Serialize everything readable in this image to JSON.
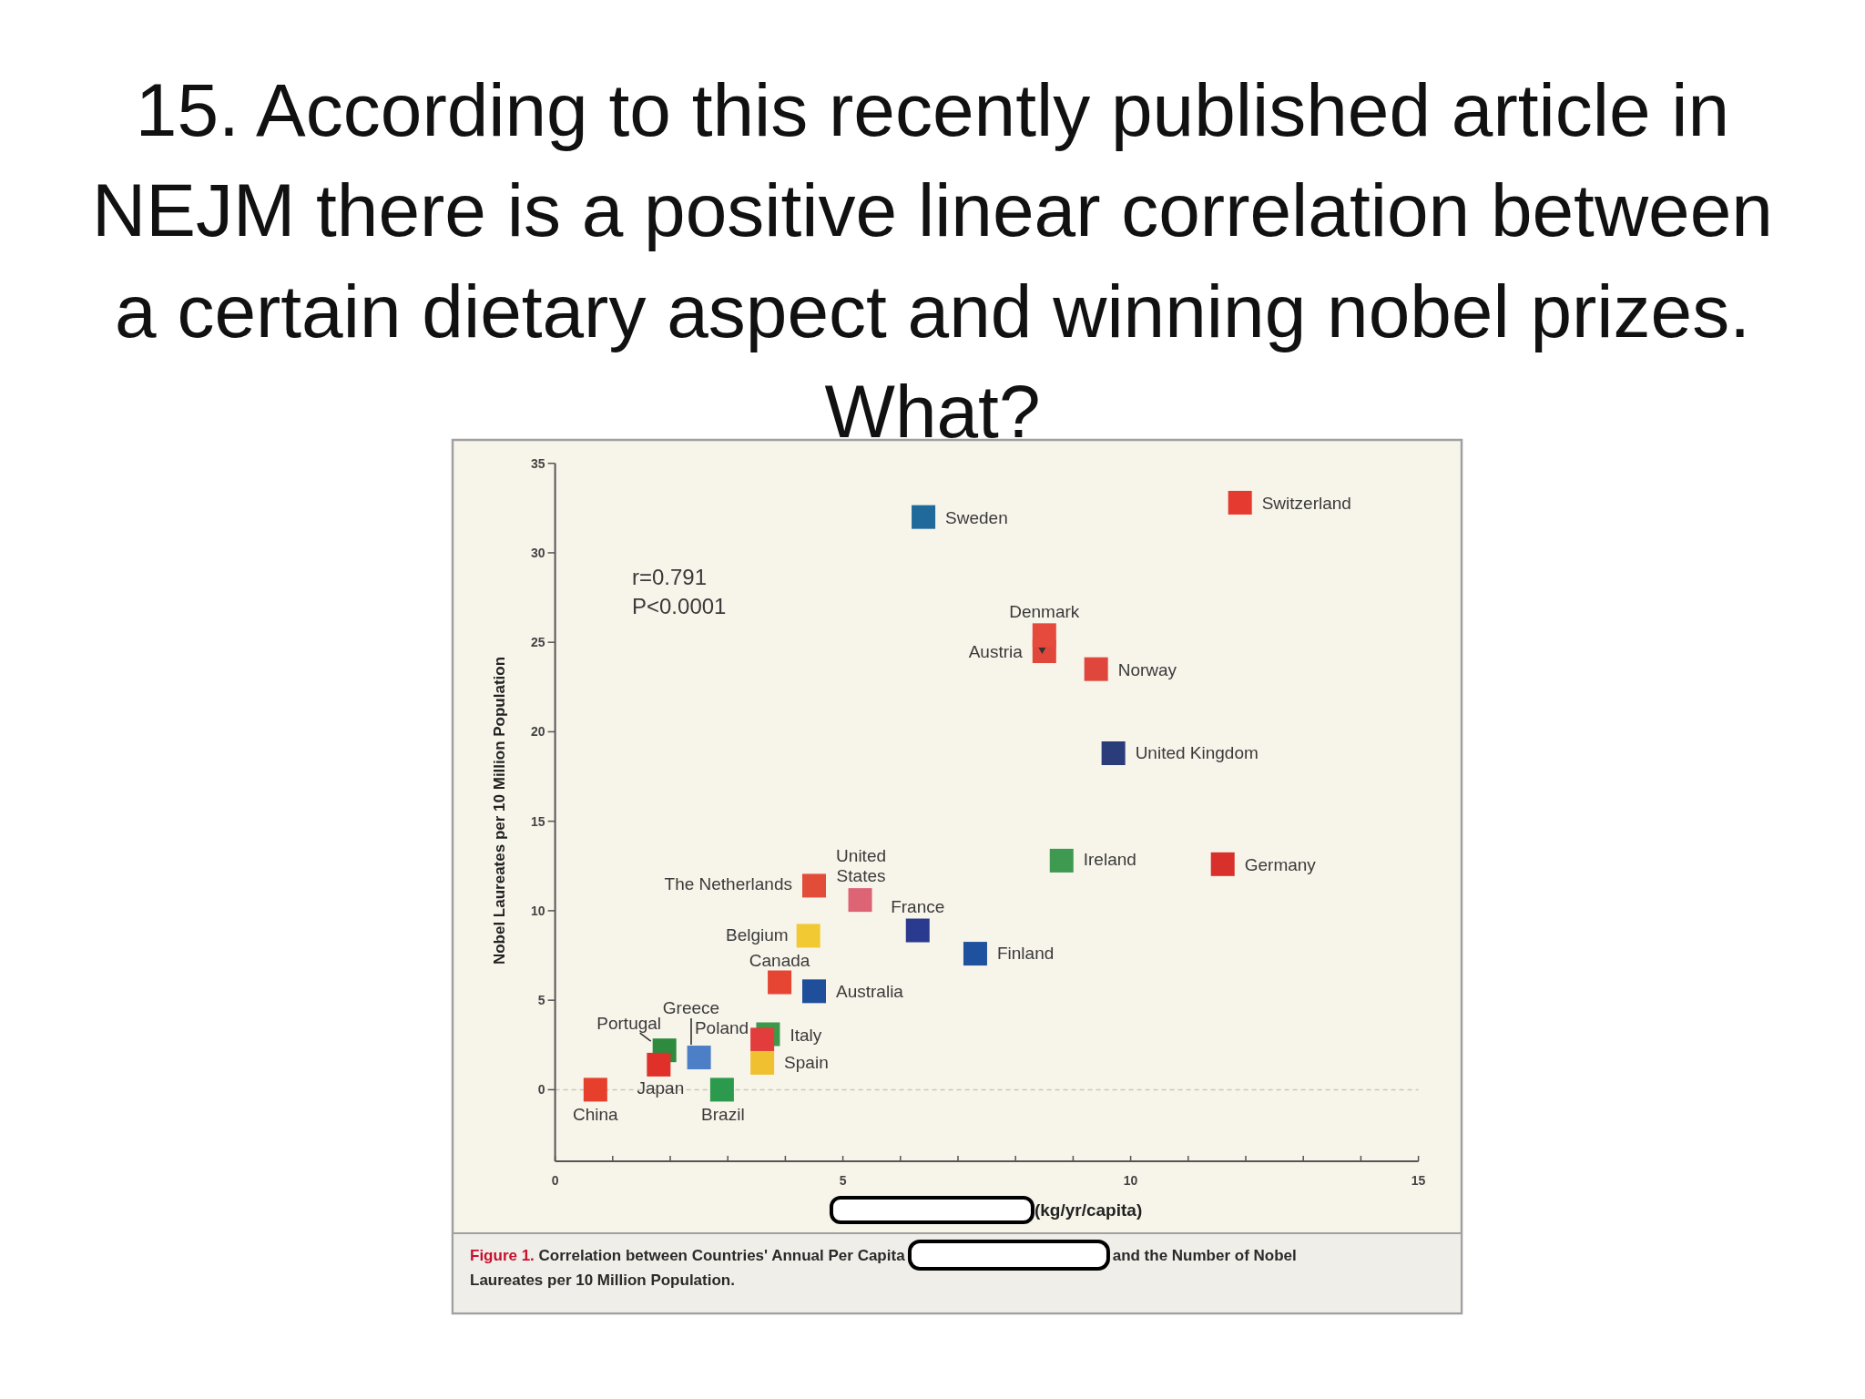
{
  "chart_data": {
    "type": "scatter",
    "title": "15. According to this recently published article in NEJM there is a positive linear correlation between a certain dietary aspect and winning nobel prizes. What?",
    "xlabel": "(kg/yr/capita)",
    "ylabel": "Nobel Laureates per 10 Million Population",
    "annotations": [
      "r=0.791",
      "P<0.0001",
      "Figure 1.",
      "Correlation between Countries' Annual Per Capita",
      "and the Number of Nobel",
      "Laureates per 10 Million Population."
    ],
    "marker": "square",
    "series": [
      {
        "name": "Switzerland",
        "color": "#e53a2f",
        "x": [
          11.9
        ],
        "values": [
          32.8
        ]
      },
      {
        "name": "Sweden",
        "color": "#1f6a9a",
        "x": [
          6.4
        ],
        "values": [
          32.0
        ]
      },
      {
        "name": "Austria",
        "color": "#e0473a",
        "x": [
          8.5
        ],
        "values": [
          24.5
        ]
      },
      {
        "name": "Denmark",
        "color": "#e64a3d",
        "x": [
          8.5
        ],
        "values": [
          25.4
        ]
      },
      {
        "name": "Norway",
        "color": "#e0473c",
        "x": [
          9.4
        ],
        "values": [
          23.5
        ]
      },
      {
        "name": "United Kingdom",
        "color": "#2b3c7a",
        "x": [
          9.7
        ],
        "values": [
          18.8
        ]
      },
      {
        "name": "Ireland",
        "color": "#3d9a50",
        "x": [
          8.8
        ],
        "values": [
          12.8
        ]
      },
      {
        "name": "Germany",
        "color": "#d8302a",
        "x": [
          11.6
        ],
        "values": [
          12.6
        ]
      },
      {
        "name": "The Netherlands",
        "color": "#e24d3a",
        "x": [
          4.5
        ],
        "values": [
          11.4
        ]
      },
      {
        "name": "United States",
        "color": "#dd6475",
        "x": [
          5.3
        ],
        "values": [
          10.6
        ]
      },
      {
        "name": "France",
        "color": "#2a3a8e",
        "x": [
          6.3
        ],
        "values": [
          8.9
        ]
      },
      {
        "name": "Belgium",
        "color": "#f0c933",
        "x": [
          4.4
        ],
        "values": [
          8.6
        ]
      },
      {
        "name": "Finland",
        "color": "#1f529e",
        "x": [
          7.3
        ],
        "values": [
          7.6
        ]
      },
      {
        "name": "Canada",
        "color": "#e64533",
        "x": [
          3.9
        ],
        "values": [
          6.0
        ]
      },
      {
        "name": "Australia",
        "color": "#1f4f9a",
        "x": [
          4.5
        ],
        "values": [
          5.5
        ]
      },
      {
        "name": "Italy",
        "color": "#3d984c",
        "x": [
          3.7
        ],
        "values": [
          3.1
        ]
      },
      {
        "name": "Poland",
        "color": "#e23c3c",
        "x": [
          3.6
        ],
        "values": [
          2.8
        ]
      },
      {
        "name": "Spain",
        "color": "#f0c030",
        "x": [
          3.6
        ],
        "values": [
          1.5
        ]
      },
      {
        "name": "Greece",
        "color": "#4d7fc6",
        "x": [
          2.5
        ],
        "values": [
          1.8
        ]
      },
      {
        "name": "Portugal",
        "color": "#2e8a3e",
        "x": [
          1.9
        ],
        "values": [
          2.2
        ]
      },
      {
        "name": "Japan",
        "color": "#e0302a",
        "x": [
          1.8
        ],
        "values": [
          1.4
        ]
      },
      {
        "name": "Brazil",
        "color": "#2b9a4c",
        "x": [
          2.9
        ],
        "values": [
          0.0
        ]
      },
      {
        "name": "China",
        "color": "#e6402d",
        "x": [
          0.7
        ],
        "values": [
          0.0
        ]
      }
    ],
    "xlim": [
      0,
      15
    ],
    "xticks": [
      0,
      {
        "value": 1,
        "label": null
      },
      {
        "value": 2,
        "label": null
      },
      {
        "value": 3,
        "label": null
      },
      {
        "value": 4,
        "label": null
      },
      5,
      {
        "value": 6,
        "label": null
      },
      {
        "value": 7,
        "label": null
      },
      {
        "value": 8,
        "label": null
      },
      {
        "value": 9,
        "label": null
      },
      10,
      {
        "value": 11,
        "label": null
      },
      {
        "value": 12,
        "label": null
      },
      {
        "value": 13,
        "label": null
      },
      {
        "value": 14,
        "label": null
      },
      15
    ],
    "ylim": [
      -4,
      35
    ],
    "yticks": [
      0,
      5,
      10,
      15,
      20,
      25,
      30,
      35
    ],
    "ref_lines": [
      {
        "axis": "y",
        "value": 0,
        "color": "#c9c6bd",
        "line_style": "dashed"
      }
    ]
  }
}
